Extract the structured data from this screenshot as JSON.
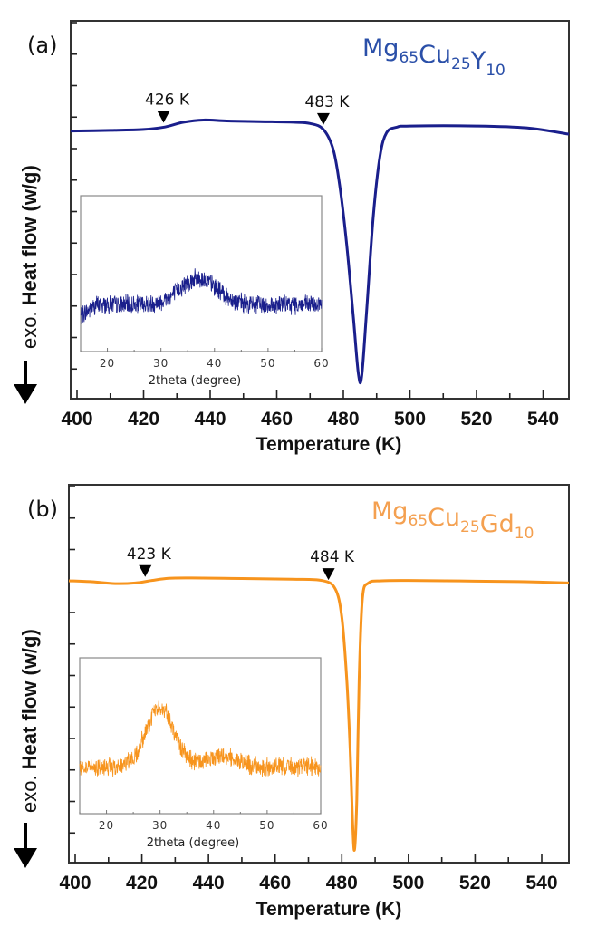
{
  "figure": {
    "panels": [
      "(a)",
      "(b)"
    ]
  },
  "chart_data": [
    {
      "type": "line",
      "panel_label": "(a)",
      "title": "",
      "composition": {
        "parts": [
          [
            "Mg",
            "65"
          ],
          [
            "Cu",
            "25"
          ],
          [
            "Y",
            "10"
          ]
        ],
        "color": "#2a4fa8"
      },
      "line_color": "#1a1f8c",
      "xlabel": "Temperature (K)",
      "ylabel_prefix": "exo.",
      "ylabel": "Heat flow (w/g)",
      "xlim": [
        398,
        549
      ],
      "ylim": [
        0,
        12
      ],
      "y_units_note": "arbitrary; 1 unit = 1 major tick, 0 at frame bottom",
      "xticks": [
        400,
        420,
        440,
        460,
        480,
        500,
        520,
        540
      ],
      "yticks_major_count": 12,
      "x": [
        398,
        410,
        420,
        426,
        432,
        438,
        445,
        455,
        465,
        470,
        474,
        477,
        479,
        481,
        483,
        484.5,
        485.5,
        487,
        489,
        491,
        493,
        496,
        500,
        520,
        535,
        549
      ],
      "y": [
        8.5,
        8.52,
        8.55,
        8.62,
        8.78,
        8.85,
        8.82,
        8.8,
        8.78,
        8.74,
        8.55,
        7.9,
        6.7,
        4.9,
        2.6,
        0.8,
        0.7,
        2.8,
        5.8,
        7.7,
        8.45,
        8.62,
        8.66,
        8.66,
        8.6,
        8.4
      ],
      "annotations": [
        {
          "label": "426 K",
          "x": 426,
          "marker": "down-triangle"
        },
        {
          "label": "483 K",
          "x": 474,
          "marker": "down-triangle"
        }
      ],
      "inset": {
        "type": "line",
        "xlabel": "2theta (degree)",
        "xlim": [
          15,
          60
        ],
        "xticks": [
          20,
          30,
          40,
          50,
          60
        ],
        "ylim": [
          0,
          1
        ],
        "line_color": "#1a1f8c",
        "profile": {
          "baseline": 0.3,
          "peaks": [
            {
              "center": 37,
              "height": 0.17,
              "width": 3.5
            }
          ],
          "start_dip": {
            "end": 18,
            "depth": 0.07
          },
          "noise": 0.07
        }
      }
    },
    {
      "type": "line",
      "panel_label": "(b)",
      "title": "",
      "composition": {
        "parts": [
          [
            "Mg",
            "65"
          ],
          [
            "Cu",
            "25"
          ],
          [
            "Gd",
            "10"
          ]
        ],
        "color": "#f4a050"
      },
      "line_color": "#f7941d",
      "xlabel": "Temperature (K)",
      "ylabel_prefix": "exo.",
      "ylabel": "Heat flow (w/g)",
      "xlim": [
        398,
        549
      ],
      "ylim": [
        0,
        12
      ],
      "y_units_note": "arbitrary; 1 unit = 1 major tick, 0 at frame bottom",
      "xticks": [
        400,
        420,
        440,
        460,
        480,
        500,
        520,
        540
      ],
      "yticks_major_count": 12,
      "x": [
        398,
        405,
        412,
        418,
        423,
        428,
        435,
        450,
        465,
        474,
        478,
        480,
        481.5,
        482.5,
        483.2,
        483.8,
        484.5,
        485.2,
        486.2,
        488,
        492,
        500,
        520,
        535,
        549
      ],
      "y": [
        8.95,
        8.92,
        8.86,
        8.88,
        8.96,
        9.03,
        9.04,
        9.02,
        9.0,
        8.96,
        8.7,
        7.8,
        5.8,
        3.6,
        1.4,
        0.4,
        2.0,
        5.8,
        8.4,
        8.88,
        8.95,
        8.96,
        8.94,
        8.92,
        8.88
      ],
      "annotations": [
        {
          "label": "423 K",
          "x": 421,
          "marker": "down-triangle"
        },
        {
          "label": "484 K",
          "x": 476,
          "marker": "down-triangle"
        }
      ],
      "inset": {
        "type": "line",
        "xlabel": "2theta (degree)",
        "xlim": [
          15,
          60
        ],
        "xticks": [
          20,
          30,
          40,
          50,
          60
        ],
        "ylim": [
          0,
          1
        ],
        "line_color": "#f7941d",
        "profile": {
          "baseline": 0.3,
          "peaks": [
            {
              "center": 30,
              "height": 0.38,
              "width": 2.6
            },
            {
              "center": 41.5,
              "height": 0.07,
              "width": 3.0
            }
          ],
          "start_dip": {
            "end": 15,
            "depth": 0.0
          },
          "noise": 0.07
        }
      }
    }
  ]
}
